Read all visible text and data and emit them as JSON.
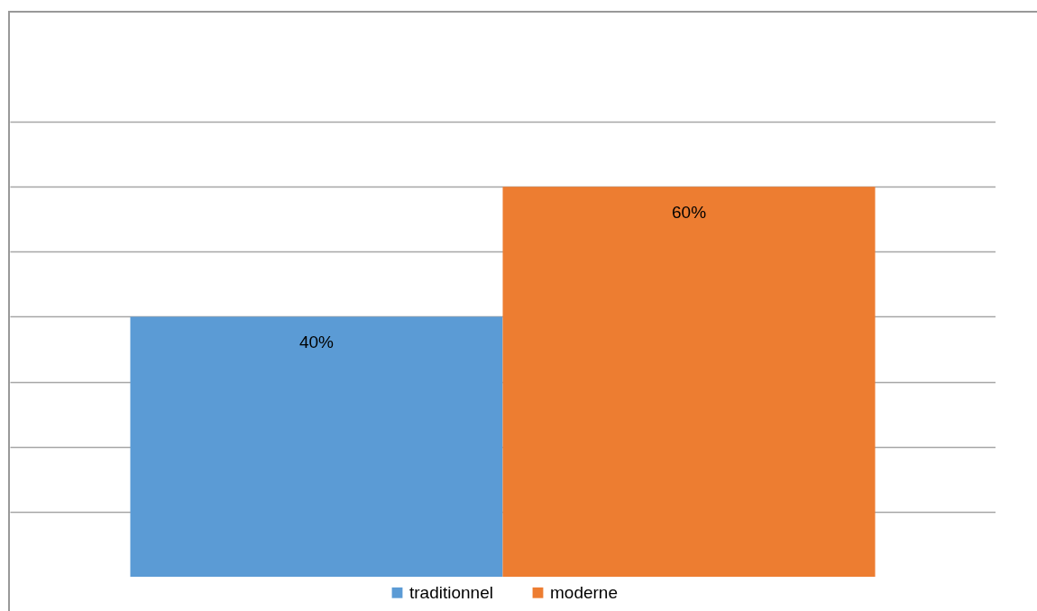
{
  "chart_data": {
    "type": "bar",
    "categories": [
      null
    ],
    "series": [
      {
        "name": "traditionnel",
        "color": "#5b9bd5",
        "values": [
          40
        ],
        "value_labels": [
          "40%"
        ]
      },
      {
        "name": "moderne",
        "color": "#ed7d31",
        "values": [
          60
        ],
        "value_labels": [
          "60%"
        ]
      }
    ],
    "ylim": [
      0,
      70
    ],
    "yticks": [
      {
        "value": 10,
        "label": null
      },
      {
        "value": 20,
        "label": null
      },
      {
        "value": 30,
        "label": null
      },
      {
        "value": 40,
        "label": null
      },
      {
        "value": 50,
        "label": null
      },
      {
        "value": 60,
        "label": null
      },
      {
        "value": 70,
        "label": null
      }
    ],
    "grid": "y",
    "legend": "bottom",
    "tick_labels": false
  }
}
